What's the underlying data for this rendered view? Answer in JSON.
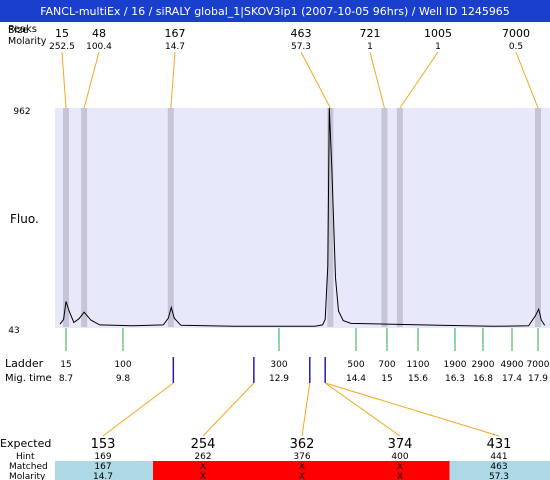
{
  "header": {
    "title": "FANCL-multiEx / 16 / siRALY global_1|SKOV3ip1 (2007-10-05 96hrs) / Well ID 1245965"
  },
  "labels": {
    "peaks_row": "Peaks",
    "size_row": "Size",
    "molarity_row": "Molarity",
    "fluo": "Fluo.",
    "ladder": "Ladder",
    "mig_time": "Mig. time",
    "expected": "Expected",
    "hint": "Hint",
    "matched": "Matched",
    "molarity_bottom": "Molarity"
  },
  "colors": {
    "header_bg": "#1a3fcc",
    "plot_bg": "#e8e8fb",
    "band": "#c5c5d7",
    "leader": "#f5a623",
    "ladder_tick": "#2ea84a",
    "marker": "#1f1fb0",
    "expected_red": "#e8211f",
    "cell_blue": "#add8e6",
    "cell_red": "#ff0000"
  },
  "chart_data": {
    "type": "line",
    "title": "",
    "ylabel": "Fluo.",
    "ylim": [
      43,
      962
    ],
    "yticks": [
      "962",
      "43"
    ],
    "peaks": [
      {
        "size": "15",
        "molarity": "252.5",
        "mig_time": 8.7
      },
      {
        "size": "48",
        "molarity": "100.4",
        "mig_time": 9.05
      },
      {
        "size": "167",
        "molarity": "14.7",
        "mig_time": 10.75
      },
      {
        "size": "463",
        "molarity": "57.3",
        "mig_time": 13.9
      },
      {
        "size": "721",
        "molarity": "1",
        "mig_time": 14.95
      },
      {
        "size": "1005",
        "molarity": "1",
        "mig_time": 15.25
      },
      {
        "size": "7000",
        "molarity": "0.5",
        "mig_time": 17.9
      }
    ],
    "ladder": [
      {
        "size": "15",
        "time": "8.7"
      },
      {
        "size": "100",
        "time": "9.8"
      },
      {
        "size": "300",
        "time": "12.9"
      },
      {
        "size": "500",
        "time": "14.4"
      },
      {
        "size": "700",
        "time": "15"
      },
      {
        "size": "1100",
        "time": "15.6"
      },
      {
        "size": "1900",
        "time": "16.3"
      },
      {
        "size": "2900",
        "time": "16.8"
      },
      {
        "size": "4900",
        "time": "17.4"
      },
      {
        "size": "7000",
        "time": "17.9"
      }
    ],
    "trace": [
      [
        8.5,
        55
      ],
      [
        8.62,
        75
      ],
      [
        8.7,
        150
      ],
      [
        8.76,
        110
      ],
      [
        8.85,
        62
      ],
      [
        8.95,
        78
      ],
      [
        9.05,
        105
      ],
      [
        9.18,
        72
      ],
      [
        9.35,
        52
      ],
      [
        10.0,
        48
      ],
      [
        10.6,
        52
      ],
      [
        10.7,
        80
      ],
      [
        10.76,
        125
      ],
      [
        10.82,
        80
      ],
      [
        10.95,
        50
      ],
      [
        12.0,
        46
      ],
      [
        13.6,
        46
      ],
      [
        13.75,
        52
      ],
      [
        13.8,
        75
      ],
      [
        13.85,
        300
      ],
      [
        13.88,
        962
      ],
      [
        13.93,
        700
      ],
      [
        14.0,
        250
      ],
      [
        14.06,
        110
      ],
      [
        14.15,
        70
      ],
      [
        14.3,
        58
      ],
      [
        15.0,
        55
      ],
      [
        16.0,
        50
      ],
      [
        17.0,
        46
      ],
      [
        17.72,
        48
      ],
      [
        17.85,
        90
      ],
      [
        17.92,
        118
      ],
      [
        18.0,
        72
      ],
      [
        18.1,
        50
      ]
    ],
    "markers": [
      10.8,
      12.4,
      13.5,
      13.8
    ],
    "expected": [
      {
        "expected": "153",
        "hint": "169",
        "matched": "167",
        "molarity": "14.7",
        "status": "ok"
      },
      {
        "expected": "254",
        "hint": "262",
        "matched": "X",
        "molarity": "X",
        "status": "miss"
      },
      {
        "expected": "362",
        "hint": "376",
        "matched": "X",
        "molarity": "X",
        "status": "miss"
      },
      {
        "expected": "374",
        "hint": "400",
        "matched": "X",
        "molarity": "X",
        "status": "miss"
      },
      {
        "expected": "431",
        "hint": "441",
        "matched": "463",
        "molarity": "57.3",
        "status": "ok"
      }
    ]
  }
}
